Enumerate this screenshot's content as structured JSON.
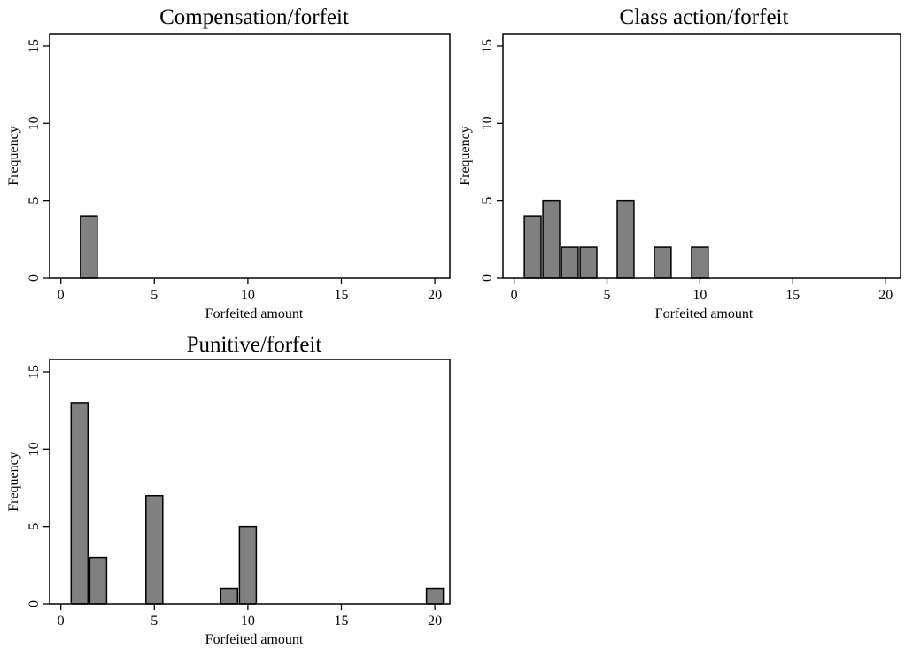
{
  "chart_data": [
    {
      "type": "bar",
      "title": "Compensation/forfeit",
      "xlabel": "Forfeited amount",
      "ylabel": "Frequency",
      "xlim": [
        0,
        20
      ],
      "ylim": [
        0,
        15
      ],
      "xticks": [
        "0",
        "5",
        "10",
        "15",
        "20"
      ],
      "yticks": [
        "0",
        "5",
        "10",
        "15"
      ],
      "bin_width": 0.9,
      "bars": [
        {
          "x": 1.5,
          "count": 4
        }
      ],
      "bar_color": "#808080",
      "grid": false,
      "legend": false
    },
    {
      "type": "bar",
      "title": "Class action/forfeit",
      "xlabel": "Forfeited amount",
      "ylabel": "Frequency",
      "xlim": [
        0,
        20
      ],
      "ylim": [
        0,
        15
      ],
      "xticks": [
        "0",
        "5",
        "10",
        "15",
        "20"
      ],
      "yticks": [
        "0",
        "5",
        "10",
        "15"
      ],
      "bin_width": 0.9,
      "bars": [
        {
          "x": 1.0,
          "count": 4
        },
        {
          "x": 2.0,
          "count": 5
        },
        {
          "x": 3.0,
          "count": 2
        },
        {
          "x": 4.0,
          "count": 2
        },
        {
          "x": 6.0,
          "count": 5
        },
        {
          "x": 8.0,
          "count": 2
        },
        {
          "x": 10.0,
          "count": 2
        }
      ],
      "bar_color": "#808080",
      "grid": false,
      "legend": false
    },
    {
      "type": "bar",
      "title": "Punitive/forfeit",
      "xlabel": "Forfeited amount",
      "ylabel": "Frequency",
      "xlim": [
        0,
        20
      ],
      "ylim": [
        0,
        15
      ],
      "xticks": [
        "0",
        "5",
        "10",
        "15",
        "20"
      ],
      "yticks": [
        "0",
        "5",
        "10",
        "15"
      ],
      "bin_width": 0.9,
      "bars": [
        {
          "x": 1.0,
          "count": 13
        },
        {
          "x": 2.0,
          "count": 3
        },
        {
          "x": 5.0,
          "count": 7
        },
        {
          "x": 9.0,
          "count": 1
        },
        {
          "x": 10.0,
          "count": 5
        },
        {
          "x": 20.0,
          "count": 1
        }
      ],
      "bar_color": "#808080",
      "grid": false,
      "legend": false
    }
  ]
}
